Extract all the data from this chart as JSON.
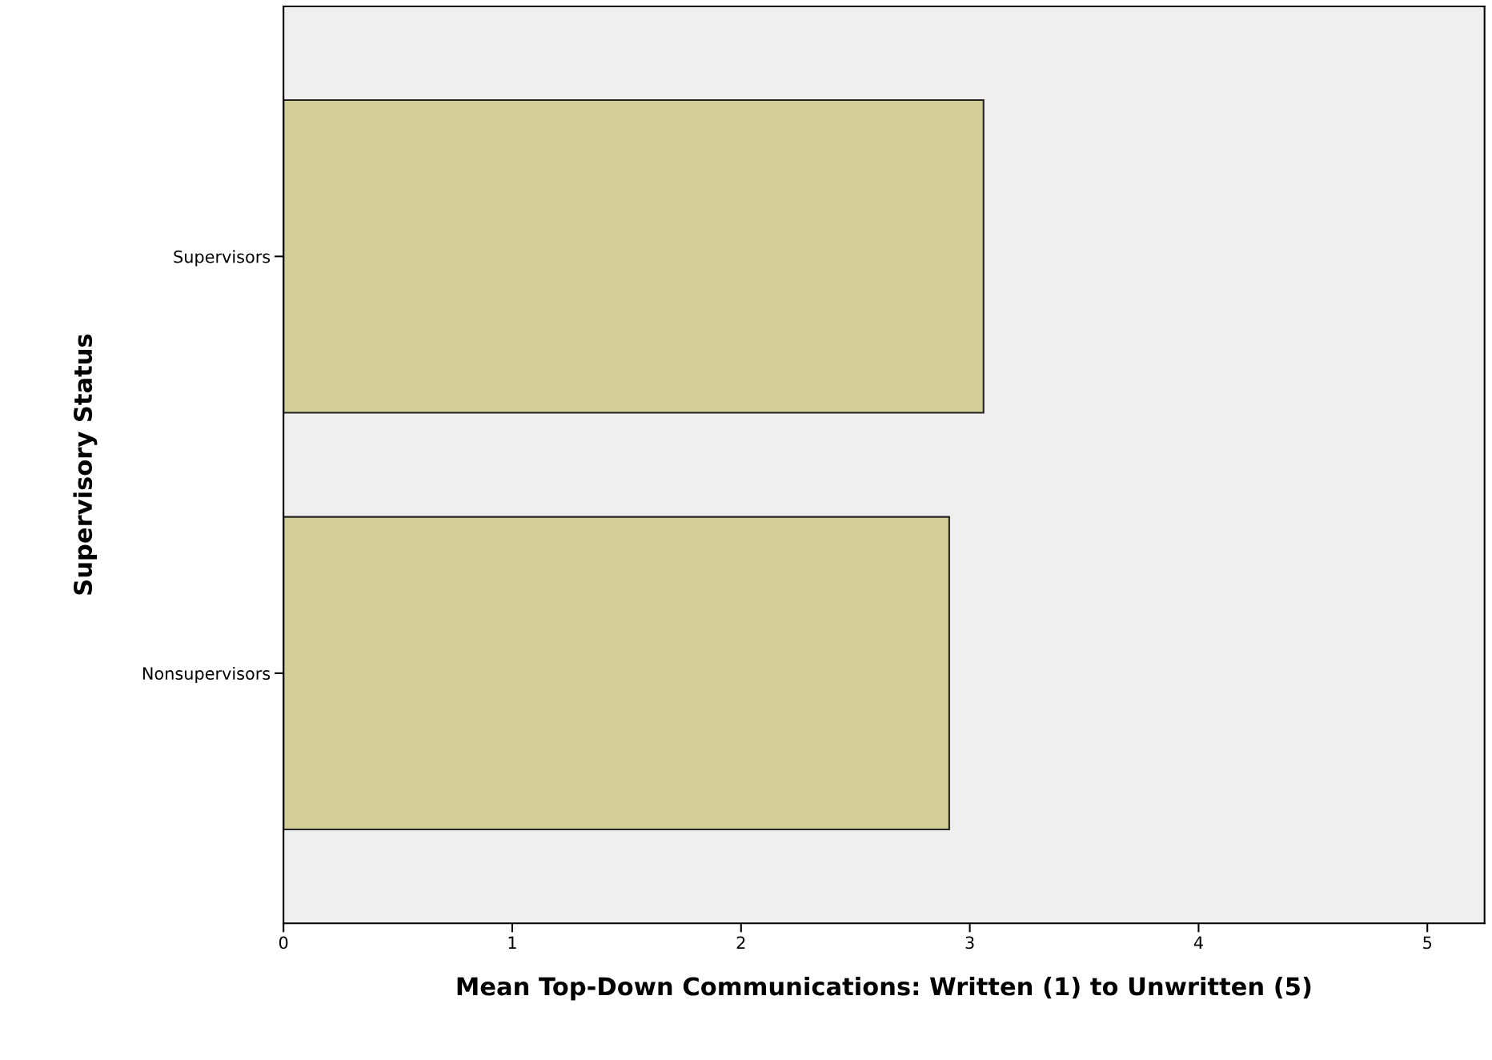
{
  "chart_data": {
    "type": "bar",
    "orientation": "horizontal",
    "categories": [
      "Supervisors",
      "Nonsupervisors"
    ],
    "values": [
      3.06,
      2.91
    ],
    "color": "#d3cd98",
    "xlim": [
      0,
      5.25
    ],
    "xticks": [
      0,
      1,
      2,
      3,
      4,
      5
    ],
    "xlabel": "Mean Top-Down Communications: Written (1) to Unwritten (5)",
    "ylabel": "Supervisory Status",
    "grid": false
  }
}
